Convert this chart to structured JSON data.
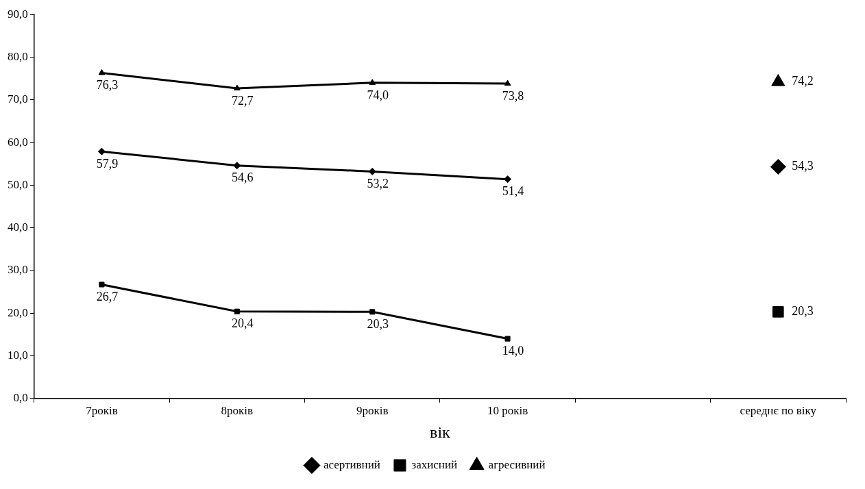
{
  "chart_data": {
    "type": "line",
    "xlabel": "вік",
    "categories": [
      "7років",
      "8років",
      "9років",
      "10 років",
      null,
      "середнє по віку"
    ],
    "series": [
      {
        "name": "асертивний",
        "color": "#000000",
        "marker": "diamond",
        "values": [
          57.9,
          54.6,
          53.2,
          51.4,
          null,
          null
        ],
        "value_labels": [
          "57,9",
          "54,6",
          "53,2",
          "51,4",
          null,
          null
        ]
      },
      {
        "name": "захисний",
        "color": "#000000",
        "marker": "square",
        "values": [
          26.7,
          20.4,
          20.3,
          14.0,
          null,
          null
        ],
        "value_labels": [
          "26,7",
          "20,4",
          "20,3",
          "14,0",
          null,
          null
        ]
      },
      {
        "name": "агресивний",
        "color": "#000000",
        "marker": "triangle",
        "values": [
          76.3,
          72.7,
          74.0,
          73.8,
          null,
          null
        ],
        "value_labels": [
          "76,3",
          "72,7",
          "74,0",
          "73,8",
          null,
          null
        ]
      },
      {
        "type": "scatter",
        "color": "#000000",
        "marker": "triangle",
        "x": [
          "середнє по віку"
        ],
        "values": [
          74.2
        ],
        "value_labels": [
          "74,2"
        ]
      },
      {
        "type": "scatter",
        "color": "#000000",
        "marker": "diamond",
        "x": [
          "середнє по віку"
        ],
        "values": [
          54.3
        ],
        "value_labels": [
          "54,3"
        ]
      },
      {
        "type": "scatter",
        "color": "#000000",
        "marker": "square",
        "x": [
          "середнє по віку"
        ],
        "values": [
          20.3
        ],
        "value_labels": [
          "20,3"
        ]
      }
    ],
    "ylim": [
      0,
      90
    ],
    "yticks": [
      {
        "value": 0,
        "label": "0,0"
      },
      {
        "value": 10,
        "label": "10,0"
      },
      {
        "value": 20,
        "label": "20,0"
      },
      {
        "value": 30,
        "label": "30,0"
      },
      {
        "value": 40,
        "label": "40,0"
      },
      {
        "value": 50,
        "label": "50,0"
      },
      {
        "value": 60,
        "label": "60,0"
      },
      {
        "value": 70,
        "label": "70,0"
      },
      {
        "value": 80,
        "label": "80,0"
      },
      {
        "value": 90,
        "label": "90,0"
      }
    ],
    "grid": false,
    "legend": "bottom"
  }
}
